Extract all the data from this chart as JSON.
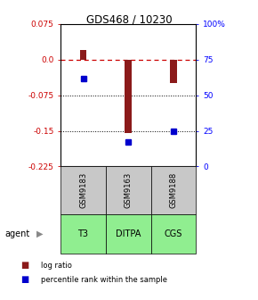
{
  "title": "GDS468 / 10230",
  "samples": [
    "GSM9183",
    "GSM9163",
    "GSM9188"
  ],
  "agents": [
    "T3",
    "DITPA",
    "CGS"
  ],
  "log_ratios": [
    0.02,
    -0.155,
    -0.05
  ],
  "percentile_ranks": [
    62,
    17,
    25
  ],
  "ylim_left": [
    -0.225,
    0.075
  ],
  "ylim_right": [
    0,
    100
  ],
  "left_ticks": [
    0.075,
    0.0,
    -0.075,
    -0.15,
    -0.225
  ],
  "right_ticks": [
    100,
    75,
    50,
    25,
    0
  ],
  "right_tick_labels": [
    "100%",
    "75",
    "50",
    "25",
    "0"
  ],
  "bar_color": "#8B1A1A",
  "dot_color": "#0000CD",
  "agent_bg_color": "#90EE90",
  "sample_bg_color": "#C8C8C8",
  "agent_label": "agent"
}
